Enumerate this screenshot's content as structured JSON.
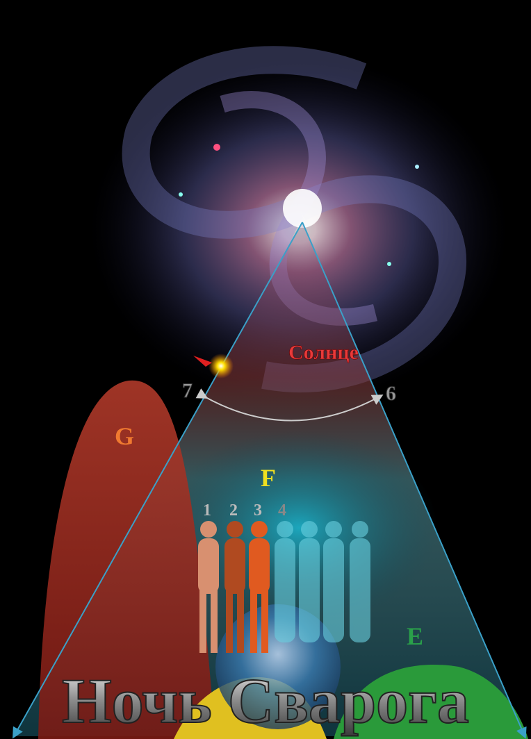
{
  "labels": {
    "sun": "Солнце",
    "point_left": "7",
    "point_right": "6",
    "zone_g": "G",
    "zone_f": "F",
    "zone_e": "E",
    "figures": [
      "1",
      "2",
      "3",
      "4"
    ],
    "title": "Ночь Сварога"
  }
}
